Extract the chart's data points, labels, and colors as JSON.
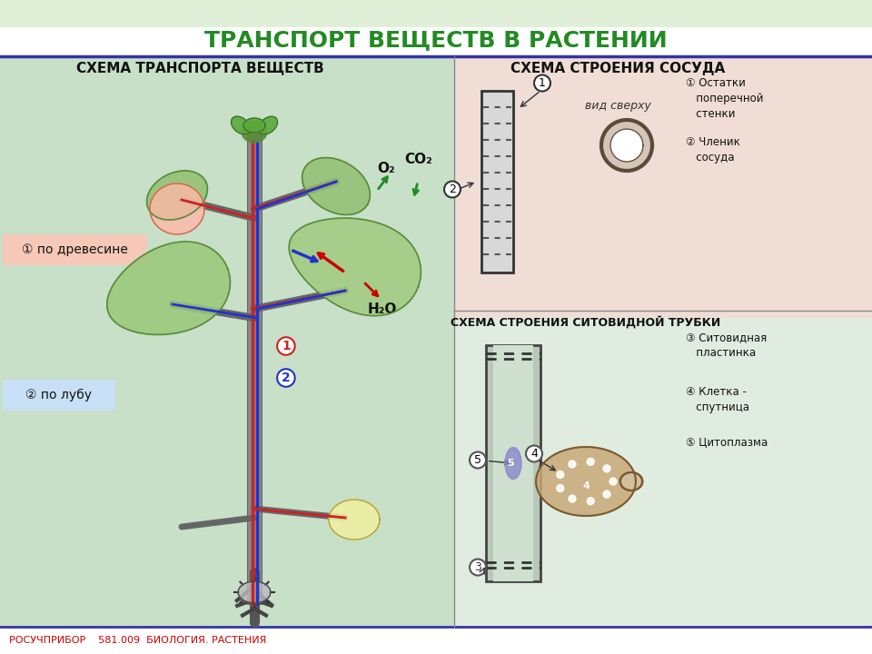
{
  "title": "ТРАНСПОРТ ВЕЩЕСТВ В РАСТЕНИИ",
  "title_color": "#228B22",
  "title_fontsize": 18,
  "bg_top_color": "#e8f5e9",
  "bg_main_color": "#ffffff",
  "header_line_color": "#3333aa",
  "left_panel_bg": "#c8dfc8",
  "left_panel_title": "СХЕМА ТРАНСПОРТА ВЕЩЕСТВ",
  "right_panel_title": "СХЕМА СТРОЕНИЯ СОСУДА",
  "right_panel_bg": "#f5e8e0",
  "bottom_right_title": "СХЕМА СТРОЕНИЯ СИТОВИДНОЙ ТРУБКИ",
  "bottom_right_bg": "#e8f0e8",
  "label1_text": "① по древесине",
  "label1_bg": "#f5c8b8",
  "label2_text": "② по лубу",
  "label2_bg": "#c8e0f5",
  "legend1_text": "① Остатки\n  поперечной\n  стенки",
  "legend2_text": "② Членик\n  сосуда",
  "legend3_text": "③ Ситовидная\n  пластинка",
  "legend4_text": "④ Клетка -\n  спутница",
  "legend5_text": "⑤ Цитоплазма",
  "footer_text": "РОСУЧПРИБОР    581.009  БИОЛОГИЯ. РАСТЕНИЯ",
  "footer_color": "#cc0000",
  "footer_fontsize": 8,
  "o2_label": "O₂",
  "co2_label": "CO₂",
  "h2o_label": "H₂O",
  "vid_sverhu": "вид сверху"
}
